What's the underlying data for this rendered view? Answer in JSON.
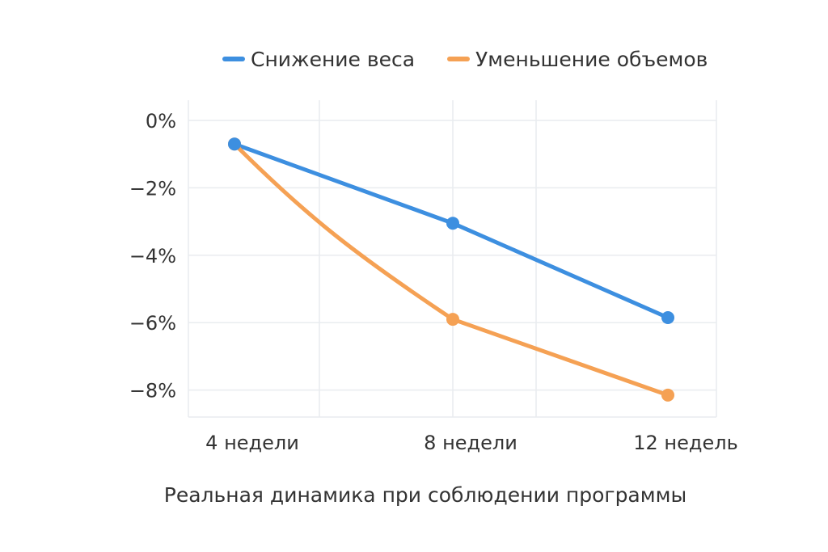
{
  "chart_data": {
    "type": "line",
    "title": "",
    "caption": "Реальная динамика при соблюдении программы",
    "xlabel": "",
    "ylabel": "",
    "categories": [
      "4 недели",
      "8 недели",
      "12 недель"
    ],
    "y_ticks": [
      "0%",
      "−2%",
      "−4%",
      "−6%",
      "−8%"
    ],
    "ylim": [
      -8.8,
      0.6
    ],
    "grid": true,
    "legend_position": "top",
    "series": [
      {
        "name": "Снижение веса",
        "color": "#3d8fe0",
        "values": [
          -0.7,
          -3.05,
          -5.85
        ]
      },
      {
        "name": "Уменьшение объемов",
        "color": "#f5a154",
        "values": [
          -0.7,
          -5.9,
          -8.15
        ]
      }
    ]
  }
}
